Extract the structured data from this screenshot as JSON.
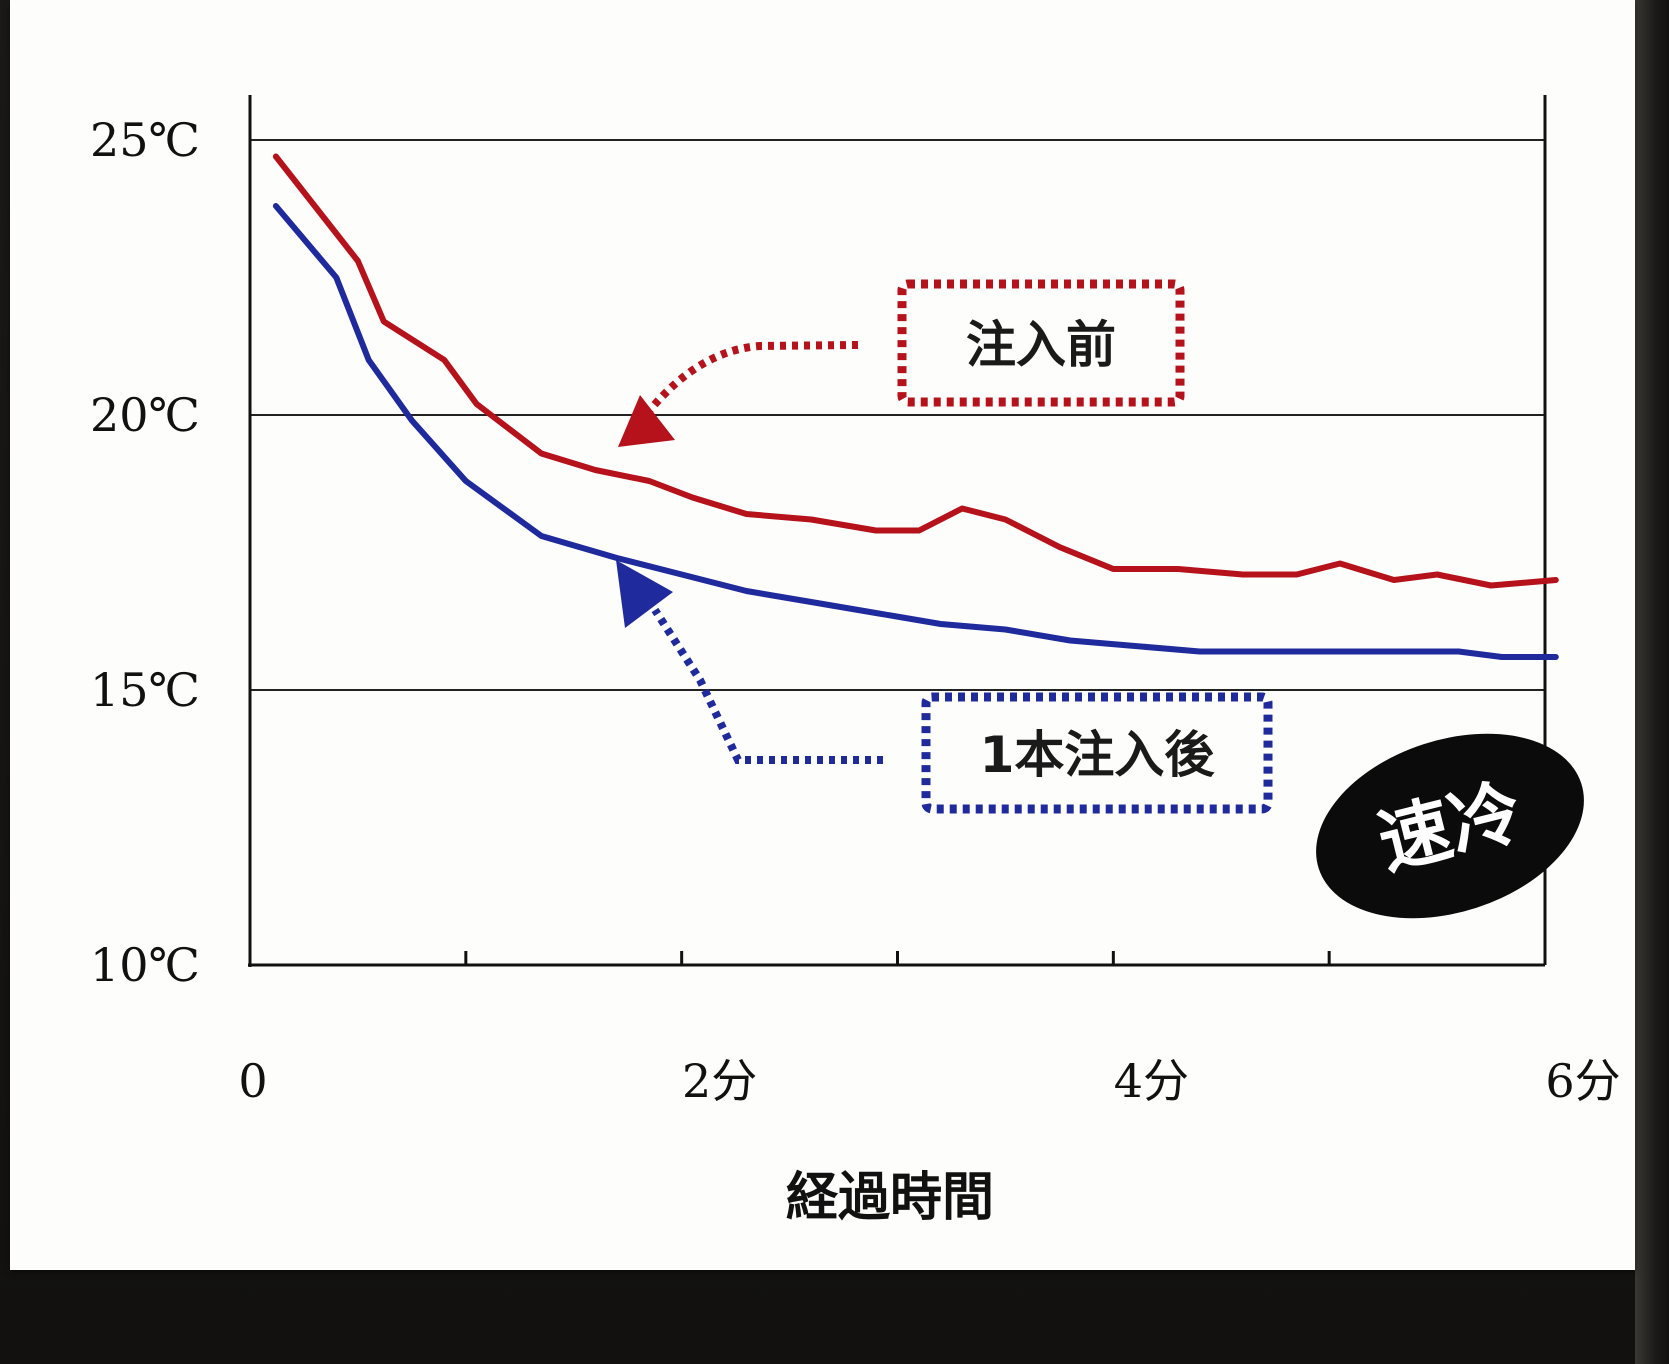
{
  "chart_data": {
    "type": "line",
    "xlabel": "経過時間",
    "ylabel": "",
    "ylim": [
      10,
      25
    ],
    "xlim": [
      0,
      6
    ],
    "y_ticks": [
      "25℃",
      "20℃",
      "15℃",
      "10℃"
    ],
    "x_ticks": [
      "0",
      "2分",
      "4分",
      "6分"
    ],
    "grid": "horizontal",
    "series": [
      {
        "name": "注入前",
        "color": "#b5121b",
        "x": [
          0.12,
          0.5,
          0.62,
          0.9,
          1.05,
          1.35,
          1.6,
          1.85,
          2.05,
          2.3,
          2.6,
          2.9,
          3.1,
          3.3,
          3.5,
          3.75,
          4.0,
          4.3,
          4.6,
          4.85,
          5.05,
          5.3,
          5.5,
          5.75,
          6.05
        ],
        "y": [
          24.7,
          22.8,
          21.7,
          21.0,
          20.2,
          19.3,
          19.0,
          18.8,
          18.5,
          18.2,
          18.1,
          17.9,
          17.9,
          18.3,
          18.1,
          17.6,
          17.2,
          17.2,
          17.1,
          17.1,
          17.3,
          17.0,
          17.1,
          16.9,
          17.0
        ]
      },
      {
        "name": "1本注入後",
        "color": "#1f2a9c",
        "x": [
          0.12,
          0.4,
          0.55,
          0.75,
          1.0,
          1.35,
          1.7,
          2.0,
          2.3,
          2.6,
          2.9,
          3.2,
          3.5,
          3.8,
          4.1,
          4.4,
          4.7,
          5.0,
          5.3,
          5.6,
          5.8,
          6.05
        ],
        "y": [
          23.8,
          22.5,
          21.0,
          19.9,
          18.8,
          17.8,
          17.4,
          17.1,
          16.8,
          16.6,
          16.4,
          16.2,
          16.1,
          15.9,
          15.8,
          15.7,
          15.7,
          15.7,
          15.7,
          15.7,
          15.6,
          15.6
        ]
      }
    ],
    "annotations": [
      {
        "text": "注入前",
        "series": "注入前",
        "style": "dotted box, red"
      },
      {
        "text": "1本注入後",
        "series": "1本注入後",
        "style": "dotted box, blue"
      }
    ],
    "badge": "速冷"
  }
}
